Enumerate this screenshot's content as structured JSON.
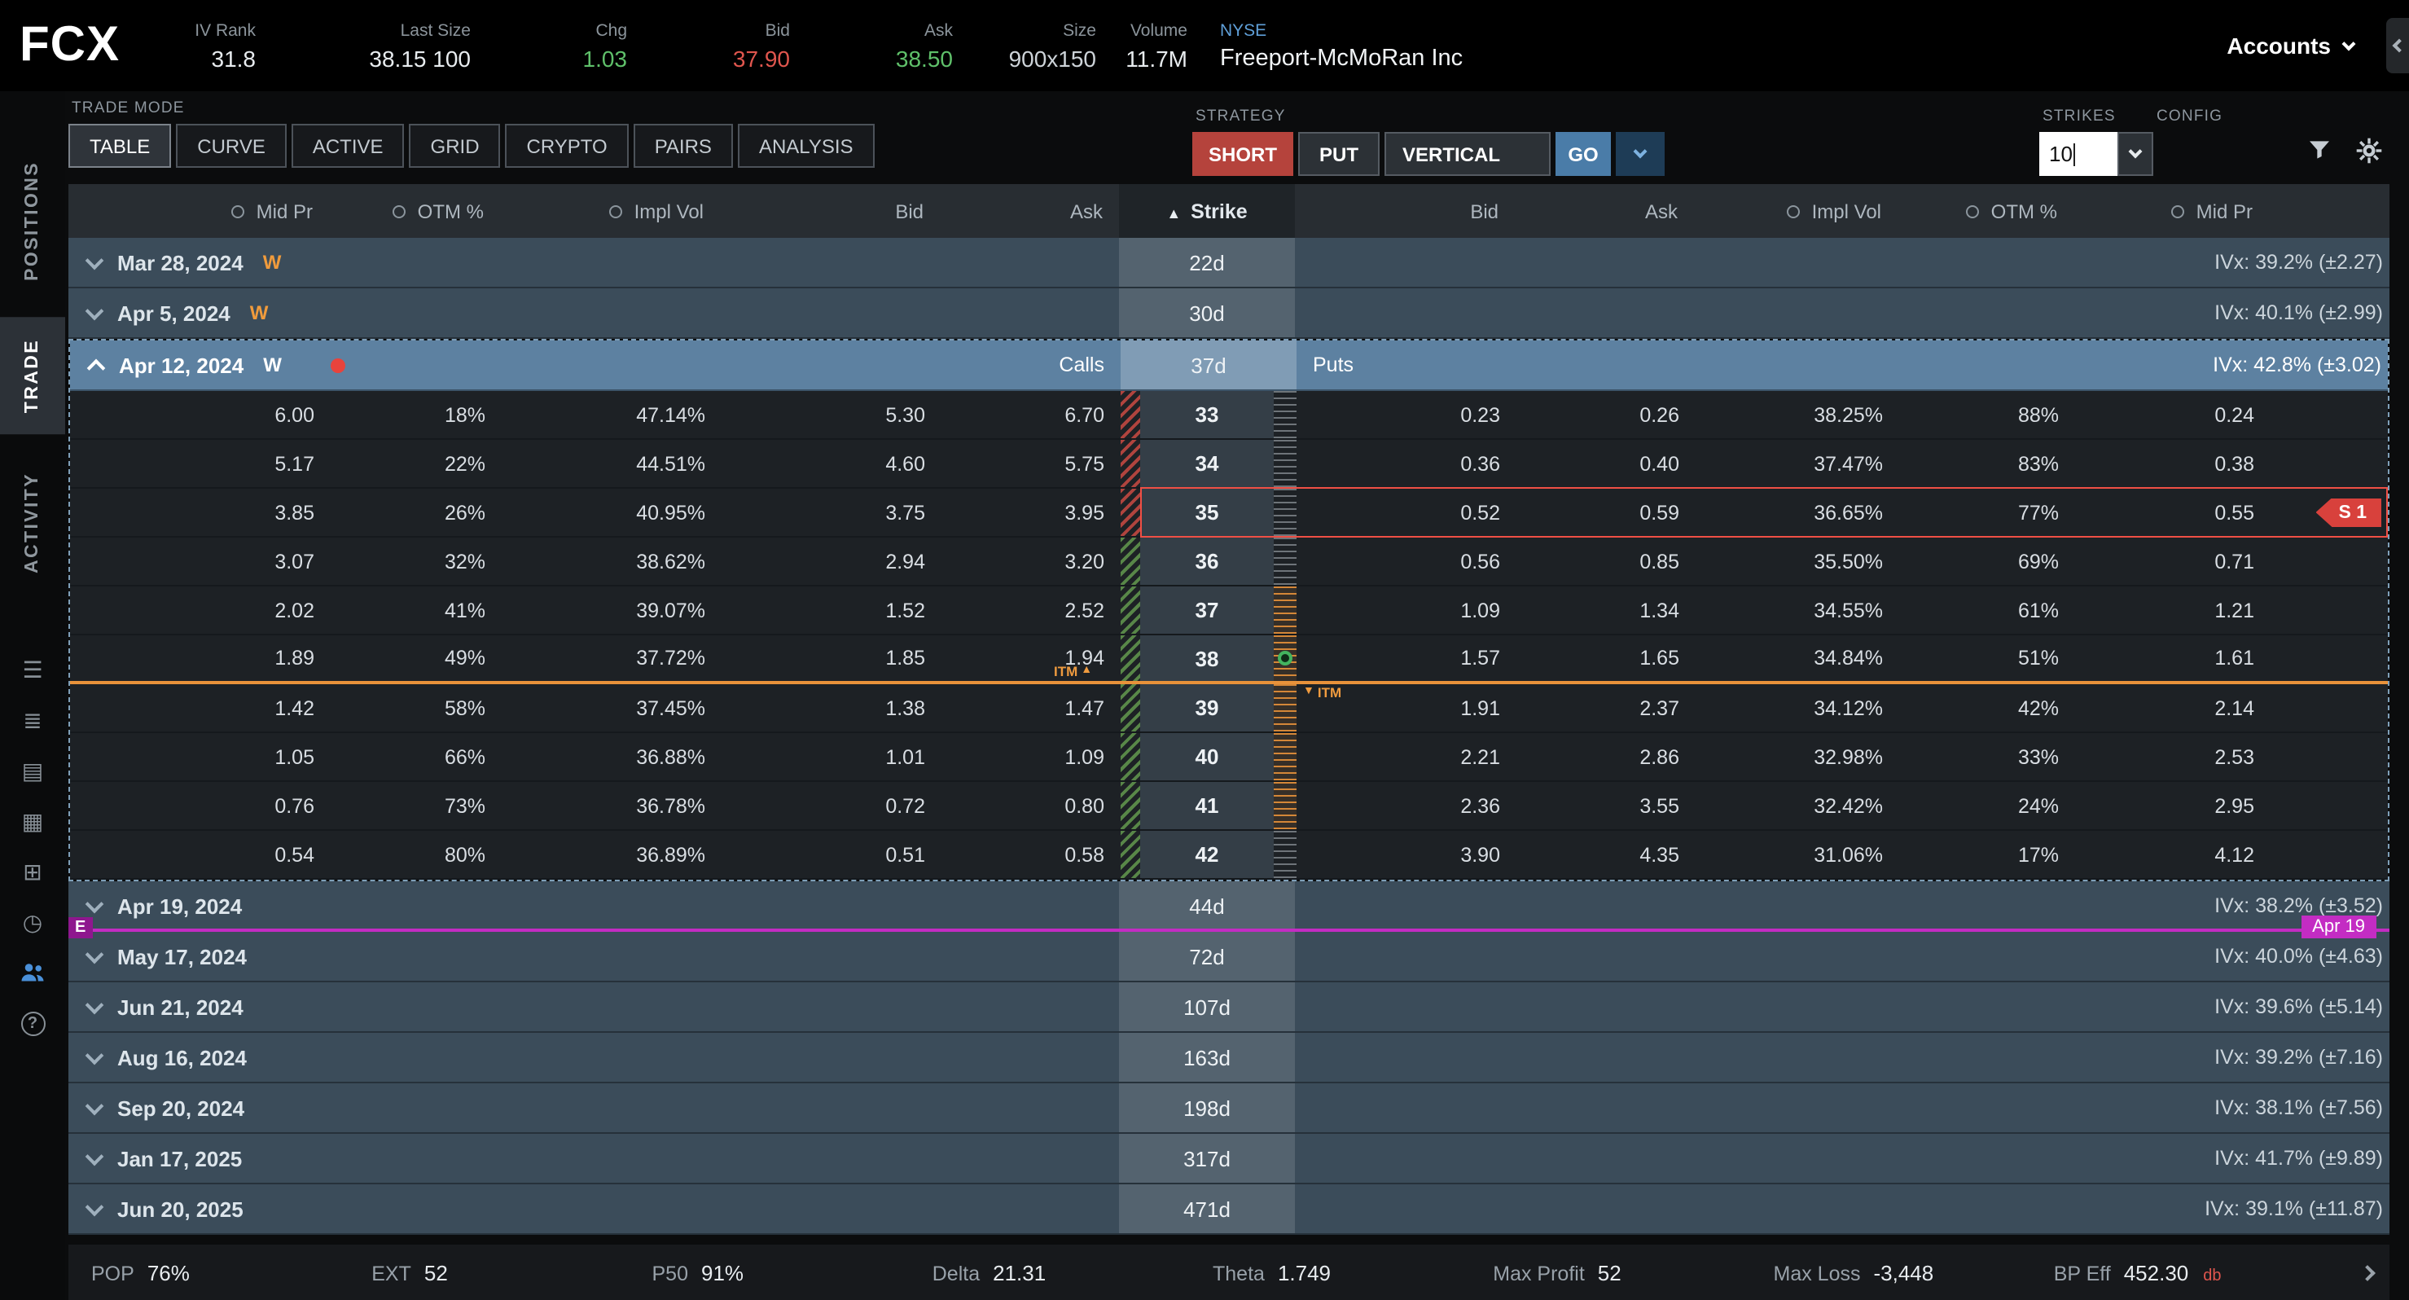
{
  "header": {
    "symbol": "FCX",
    "fields": [
      {
        "label": "IV Rank",
        "value": "31.8"
      },
      {
        "label": "Last Size",
        "value": "38.15 100"
      },
      {
        "label": "Chg",
        "value": "1.03"
      },
      {
        "label": "Bid",
        "value": "37.90"
      },
      {
        "label": "Ask",
        "value": "38.50"
      },
      {
        "label": "Size",
        "value": "900x150"
      },
      {
        "label": "Volume",
        "value": "11.7M"
      }
    ],
    "exchange": "NYSE",
    "company": "Freeport-McMoRan Inc",
    "accounts_label": "Accounts"
  },
  "sidebar": {
    "tabs": [
      {
        "label": "POSITIONS"
      },
      {
        "label": "TRADE"
      },
      {
        "label": "ACTIVITY"
      }
    ],
    "icons": [
      {
        "name": "watchlist-icon",
        "glyph": "☰"
      },
      {
        "name": "orders-icon",
        "glyph": "≣"
      },
      {
        "name": "journal-icon",
        "glyph": "▤"
      },
      {
        "name": "curve-analysis-icon",
        "glyph": "▦"
      },
      {
        "name": "apps-grid-icon",
        "glyph": "⊞"
      },
      {
        "name": "history-icon",
        "glyph": "◷"
      },
      {
        "name": "follow-feed-icon",
        "glyph": ""
      },
      {
        "name": "help-icon",
        "glyph": "?"
      }
    ]
  },
  "toolbar": {
    "trade_mode_label": "TRADE MODE",
    "mode_tabs": [
      {
        "label": "TABLE"
      },
      {
        "label": "CURVE"
      },
      {
        "label": "ACTIVE"
      },
      {
        "label": "GRID"
      },
      {
        "label": "CRYPTO"
      },
      {
        "label": "PAIRS"
      },
      {
        "label": "ANALYSIS"
      }
    ],
    "strategy_label": "STRATEGY",
    "strategy": {
      "side": "SHORT",
      "type": "PUT",
      "shape": "VERTICAL",
      "go": "GO"
    },
    "strikes_label": "STRIKES",
    "strikes_value": "10",
    "config_label": "CONFIG"
  },
  "chain": {
    "headers": {
      "call_mid": "Mid Pr",
      "call_otm": "OTM %",
      "call_iv": "Impl Vol",
      "call_bid": "Bid",
      "call_ask": "Ask",
      "strike": "Strike",
      "put_bid": "Bid",
      "put_ask": "Ask",
      "put_iv": "Impl Vol",
      "put_otm": "OTM %",
      "put_mid": "Mid Pr"
    },
    "calls_label": "Calls",
    "puts_label": "Puts",
    "weekly_badge": "W",
    "itm_label": "ITM",
    "position_badge": "S 1",
    "expirations": [
      {
        "date": "Mar 28, 2024",
        "weekly": true,
        "dte": "22d",
        "ivx": "IVx: 39.2% (±2.27)"
      },
      {
        "date": "Apr 5, 2024",
        "weekly": true,
        "dte": "30d",
        "ivx": "IVx: 40.1% (±2.99)"
      },
      {
        "date": "Apr 12, 2024",
        "weekly": true,
        "expanded": true,
        "position": true,
        "dte": "37d",
        "ivx": "IVx: 42.8% (±3.02)"
      },
      {
        "date": "Apr 19, 2024",
        "dte": "44d",
        "ivx": "IVx: 38.2% (±3.52)",
        "event_badge": "E",
        "event_label": "Apr 19"
      },
      {
        "date": "May 17, 2024",
        "dte": "72d",
        "ivx": "IVx: 40.0% (±4.63)"
      },
      {
        "date": "Jun 21, 2024",
        "dte": "107d",
        "ivx": "IVx: 39.6% (±5.14)"
      },
      {
        "date": "Aug 16, 2024",
        "dte": "163d",
        "ivx": "IVx: 39.2% (±7.16)"
      },
      {
        "date": "Sep 20, 2024",
        "dte": "198d",
        "ivx": "IVx: 38.1% (±7.56)"
      },
      {
        "date": "Jan 17, 2025",
        "dte": "317d",
        "ivx": "IVx: 41.7% (±9.89)"
      },
      {
        "date": "Jun 20, 2025",
        "dte": "471d",
        "ivx": "IVx: 39.1% (±11.87)"
      }
    ],
    "strike_rows": [
      {
        "c_mid": "6.00",
        "c_otm": "18%",
        "c_iv": "47.14%",
        "c_bid": "5.30",
        "c_ask": "6.70",
        "strike": "33",
        "p_bid": "0.23",
        "p_ask": "0.26",
        "p_iv": "38.25%",
        "p_otm": "88%",
        "p_mid": "0.24",
        "zone": "loss",
        "ruler": "gray"
      },
      {
        "c_mid": "5.17",
        "c_otm": "22%",
        "c_iv": "44.51%",
        "c_bid": "4.60",
        "c_ask": "5.75",
        "strike": "34",
        "p_bid": "0.36",
        "p_ask": "0.40",
        "p_iv": "37.47%",
        "p_otm": "83%",
        "p_mid": "0.38",
        "zone": "loss",
        "ruler": "gray"
      },
      {
        "c_mid": "3.85",
        "c_otm": "26%",
        "c_iv": "40.95%",
        "c_bid": "3.75",
        "c_ask": "3.95",
        "strike": "35",
        "p_bid": "0.52",
        "p_ask": "0.59",
        "p_iv": "36.65%",
        "p_otm": "77%",
        "p_mid": "0.55",
        "zone": "loss",
        "ruler": "gray",
        "selected": true
      },
      {
        "c_mid": "3.07",
        "c_otm": "32%",
        "c_iv": "38.62%",
        "c_bid": "2.94",
        "c_ask": "3.20",
        "strike": "36",
        "p_bid": "0.56",
        "p_ask": "0.85",
        "p_iv": "35.50%",
        "p_otm": "69%",
        "p_mid": "0.71",
        "zone": "profit",
        "ruler": "gray"
      },
      {
        "c_mid": "2.02",
        "c_otm": "41%",
        "c_iv": "39.07%",
        "c_bid": "1.52",
        "c_ask": "2.52",
        "strike": "37",
        "p_bid": "1.09",
        "p_ask": "1.34",
        "p_iv": "34.55%",
        "p_otm": "61%",
        "p_mid": "1.21",
        "zone": "profit",
        "ruler": "orange"
      },
      {
        "c_mid": "1.89",
        "c_otm": "49%",
        "c_iv": "37.72%",
        "c_bid": "1.85",
        "c_ask": "1.94",
        "strike": "38",
        "p_bid": "1.57",
        "p_ask": "1.65",
        "p_iv": "34.84%",
        "p_otm": "51%",
        "p_mid": "1.61",
        "zone": "profit",
        "ruler": "orange",
        "price_line": true
      },
      {
        "c_mid": "1.42",
        "c_otm": "58%",
        "c_iv": "37.45%",
        "c_bid": "1.38",
        "c_ask": "1.47",
        "strike": "39",
        "p_bid": "1.91",
        "p_ask": "2.37",
        "p_iv": "34.12%",
        "p_otm": "42%",
        "p_mid": "2.14",
        "zone": "profit",
        "ruler": "orange"
      },
      {
        "c_mid": "1.05",
        "c_otm": "66%",
        "c_iv": "36.88%",
        "c_bid": "1.01",
        "c_ask": "1.09",
        "strike": "40",
        "p_bid": "2.21",
        "p_ask": "2.86",
        "p_iv": "32.98%",
        "p_otm": "33%",
        "p_mid": "2.53",
        "zone": "profit",
        "ruler": "orange"
      },
      {
        "c_mid": "0.76",
        "c_otm": "73%",
        "c_iv": "36.78%",
        "c_bid": "0.72",
        "c_ask": "0.80",
        "strike": "41",
        "p_bid": "2.36",
        "p_ask": "3.55",
        "p_iv": "32.42%",
        "p_otm": "24%",
        "p_mid": "2.95",
        "zone": "profit",
        "ruler": "orange"
      },
      {
        "c_mid": "0.54",
        "c_otm": "80%",
        "c_iv": "36.89%",
        "c_bid": "0.51",
        "c_ask": "0.58",
        "strike": "42",
        "p_bid": "3.90",
        "p_ask": "4.35",
        "p_iv": "31.06%",
        "p_otm": "17%",
        "p_mid": "4.12",
        "zone": "profit",
        "ruler": "gray"
      }
    ]
  },
  "footer": {
    "metrics": [
      {
        "label": "POP",
        "value": "76%"
      },
      {
        "label": "EXT",
        "value": "52"
      },
      {
        "label": "P50",
        "value": "91%"
      },
      {
        "label": "Delta",
        "value": "21.31"
      },
      {
        "label": "Theta",
        "value": "1.749"
      },
      {
        "label": "Max Profit",
        "value": "52"
      },
      {
        "label": "Max Loss",
        "value": "-3,448"
      },
      {
        "label": "BP Eff",
        "value": "452.30",
        "suffix": "db"
      }
    ]
  },
  "colors": {
    "accent_red": "#b5433c",
    "accent_green": "#5fc06a",
    "accent_orange": "#ef9b3f",
    "accent_blue": "#4a7ca8",
    "accent_magenta": "#c32cc3",
    "exchange_blue": "#5f9fd8"
  }
}
